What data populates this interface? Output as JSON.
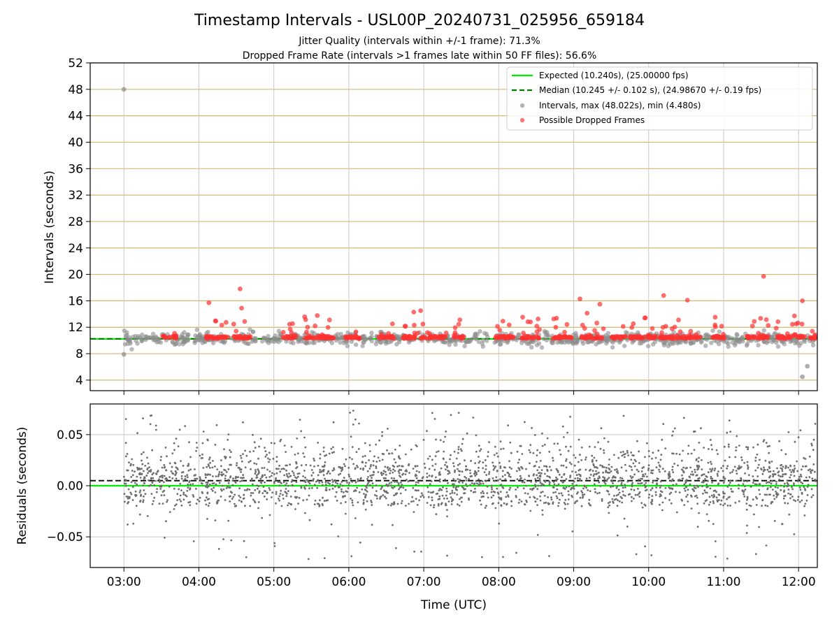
{
  "title": "Timestamp Intervals - USL00P_20240731_025956_659184",
  "subtitle_lines": [
    "Jitter Quality (intervals within +/-1 frame): 71.3%",
    "Dropped Frame Rate (intervals >1 frames late within 50 FF files): 56.6%"
  ],
  "colors": {
    "expected": "#00ee00",
    "median": "#007a00",
    "intervals": "#8c8c8c",
    "dropped": "#ff3030",
    "hgrid_top": "#d4b870",
    "grid": "#c8c8c8",
    "residual": "#6e6e6e"
  },
  "chart_data": [
    {
      "type": "scatter",
      "ylabel": "Intervals (seconds)",
      "xlabel": "",
      "ylim": [
        2.4,
        52
      ],
      "xlim": [
        "02:33",
        "12:15"
      ],
      "yticks": [
        4,
        8,
        12,
        16,
        20,
        24,
        28,
        32,
        36,
        40,
        44,
        48,
        52
      ],
      "xtick_labels": [
        "03:00",
        "04:00",
        "05:00",
        "06:00",
        "07:00",
        "08:00",
        "09:00",
        "10:00",
        "11:00",
        "12:00"
      ],
      "grid": true,
      "legend_position": "upper right",
      "legend": [
        "Expected (10.240s), (25.00000 fps)",
        "Median (10.245 +/- 0.102 s), (24.98670 +/- 0.19 fps)",
        "Intervals, max (48.022s), min (4.480s)",
        "Possible Dropped Frames"
      ],
      "expected_interval": 10.24,
      "median_interval": 10.245,
      "interval_max": 48.022,
      "interval_min": 4.48,
      "x_range": [
        "03:00",
        "12:14"
      ],
      "notable_points": [
        {
          "series": "Intervals",
          "x": "03:00",
          "y": 48.0
        },
        {
          "series": "Intervals",
          "x": "03:00",
          "y": 7.9
        },
        {
          "series": "Possible Dropped Frames",
          "x": "04:33",
          "y": 17.8
        },
        {
          "series": "Possible Dropped Frames",
          "x": "04:08",
          "y": 15.7
        },
        {
          "series": "Possible Dropped Frames",
          "x": "09:05",
          "y": 16.3
        },
        {
          "series": "Possible Dropped Frames",
          "x": "10:12",
          "y": 16.8
        },
        {
          "series": "Possible Dropped Frames",
          "x": "10:31",
          "y": 16.1
        },
        {
          "series": "Possible Dropped Frames",
          "x": "11:32",
          "y": 19.7
        },
        {
          "series": "Possible Dropped Frames",
          "x": "12:03",
          "y": 16.0
        },
        {
          "series": "Intervals",
          "x": "12:03",
          "y": 4.5
        },
        {
          "series": "Intervals",
          "x": "12:07",
          "y": 6.1
        }
      ]
    },
    {
      "type": "scatter",
      "ylabel": "Residuals (seconds)",
      "xlabel": "Time (UTC)",
      "ylim": [
        -0.08,
        0.08
      ],
      "xlim": [
        "02:33",
        "12:15"
      ],
      "yticks": [
        -0.05,
        0.0,
        0.05
      ],
      "ytick_labels": [
        "−0.05",
        "0.00",
        "0.05"
      ],
      "xtick_labels": [
        "03:00",
        "04:00",
        "05:00",
        "06:00",
        "07:00",
        "08:00",
        "09:00",
        "10:00",
        "11:00",
        "12:00"
      ],
      "grid": true,
      "expected_residual": 0.0,
      "median_residual": 0.005,
      "residual_typical_range": [
        -0.03,
        0.05
      ],
      "residual_extreme_range": [
        -0.08,
        0.075
      ]
    }
  ]
}
